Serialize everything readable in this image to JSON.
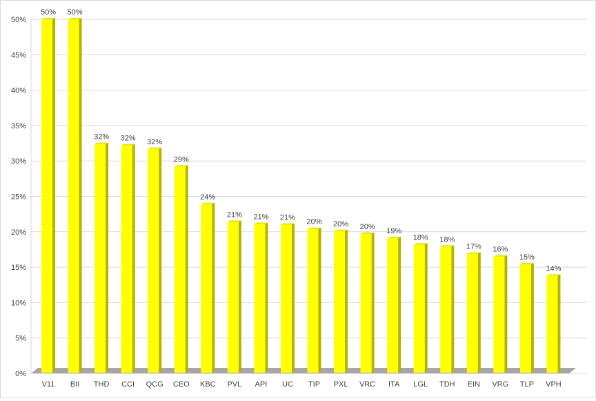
{
  "chart_data": {
    "type": "bar",
    "style": "3d-column",
    "categories": [
      "V11",
      "BII",
      "THD",
      "CCI",
      "QCG",
      "CEO",
      "KBC",
      "PVL",
      "API",
      "UC",
      "TIP",
      "PXL",
      "VRC",
      "ITA",
      "LGL",
      "TDH",
      "EIN",
      "VRG",
      "TLP",
      "VPH"
    ],
    "values": [
      50.0,
      50.0,
      32.4,
      32.2,
      31.7,
      29.2,
      23.9,
      21.4,
      21.1,
      21.0,
      20.4,
      20.1,
      19.7,
      19.1,
      18.2,
      17.9,
      16.9,
      16.5,
      15.4,
      13.8
    ],
    "data_labels": [
      "50%",
      "50%",
      "32%",
      "32%",
      "32%",
      "29%",
      "24%",
      "21%",
      "21%",
      "21%",
      "20%",
      "20%",
      "20%",
      "19%",
      "18%",
      "18%",
      "17%",
      "16%",
      "15%",
      "14%"
    ],
    "ylim": [
      0,
      50
    ],
    "yticks": [
      "0%",
      "5%",
      "10%",
      "15%",
      "20%",
      "25%",
      "30%",
      "35%",
      "40%",
      "45%",
      "50%"
    ],
    "grid": true,
    "legend": "none",
    "colors": {
      "bar_front": "#ffff00",
      "bar_side": "#b3b300",
      "bar_top": "#e6e600",
      "floor": "#a6a6a6",
      "grid": "#d9d9d9"
    }
  }
}
